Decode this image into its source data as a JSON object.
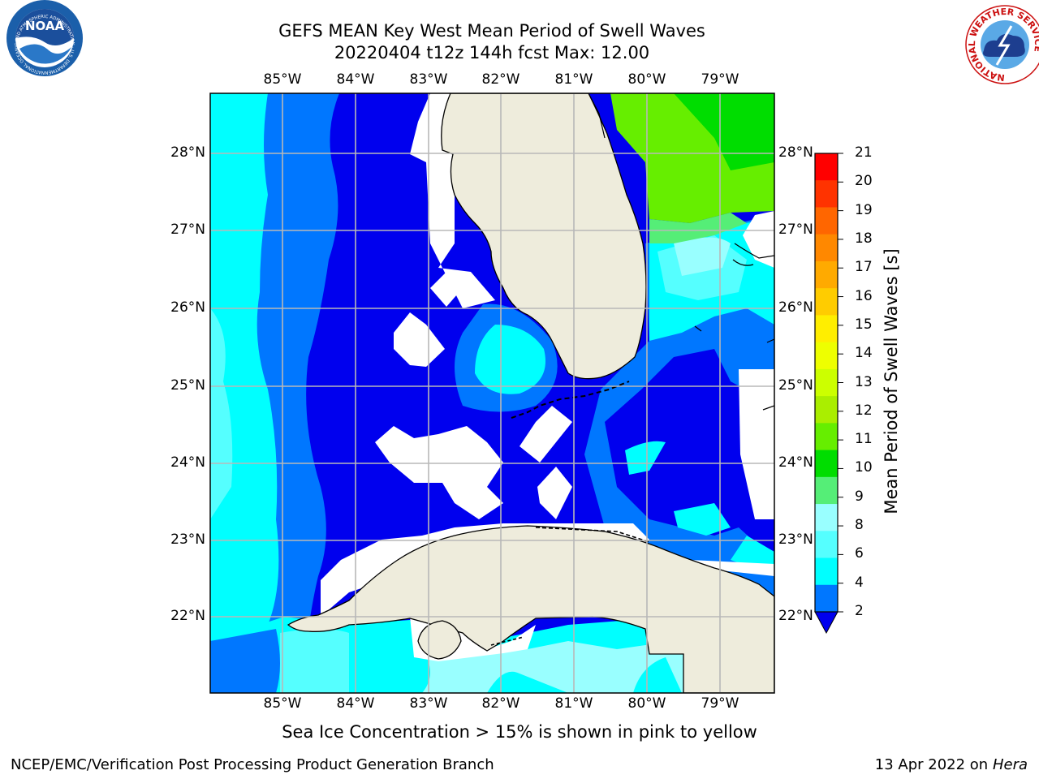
{
  "title": {
    "line1": "GEFS MEAN Key West Mean Period of Swell Waves",
    "line2": "20220404 t12z 144h fcst   Max: 12.00"
  },
  "map": {
    "lon_labels": [
      "85°W",
      "84°W",
      "83°W",
      "82°W",
      "81°W",
      "80°W",
      "79°W"
    ],
    "lat_labels": [
      "28°N",
      "27°N",
      "26°N",
      "25°N",
      "24°N",
      "23°N",
      "22°N"
    ],
    "colors": {
      "land": "#eeecdc",
      "coast": "#000000",
      "grid": "#b8b8b8",
      "no_data": "#ffffff"
    }
  },
  "colorbar": {
    "label": "Mean Period of Swell Waves [s]",
    "ticks": [
      "21",
      "20",
      "19",
      "18",
      "17",
      "16",
      "15",
      "14",
      "13",
      "12",
      "11",
      "10",
      "9",
      "8",
      "6",
      "4",
      "2"
    ],
    "colors": [
      "#ff0000",
      "#ff3300",
      "#ff6600",
      "#ff8800",
      "#ffaa00",
      "#ffcc00",
      "#ffee00",
      "#eeff00",
      "#ccff00",
      "#aaee00",
      "#66ee00",
      "#00dd00",
      "#55ee77",
      "#99ffff",
      "#55ffff",
      "#00ffff",
      "#0077ff"
    ],
    "under_color": "#0000ee"
  },
  "footnote": "Sea Ice Concentration > 15% is shown in pink to yellow",
  "credit": "NCEP/EMC/Verification Post Processing Product Generation Branch",
  "date": {
    "text": "13 Apr 2022 on ",
    "machine": "Hera"
  },
  "logos": {
    "noaa_text": "NOAA",
    "noaa_ring": "NATIONAL OCEANIC AND ATMOSPHERIC ADMINISTRATION · U.S. DEPARTMENT OF COMMERCE",
    "nws_ring": "NATIONAL WEATHER SERVICE"
  }
}
